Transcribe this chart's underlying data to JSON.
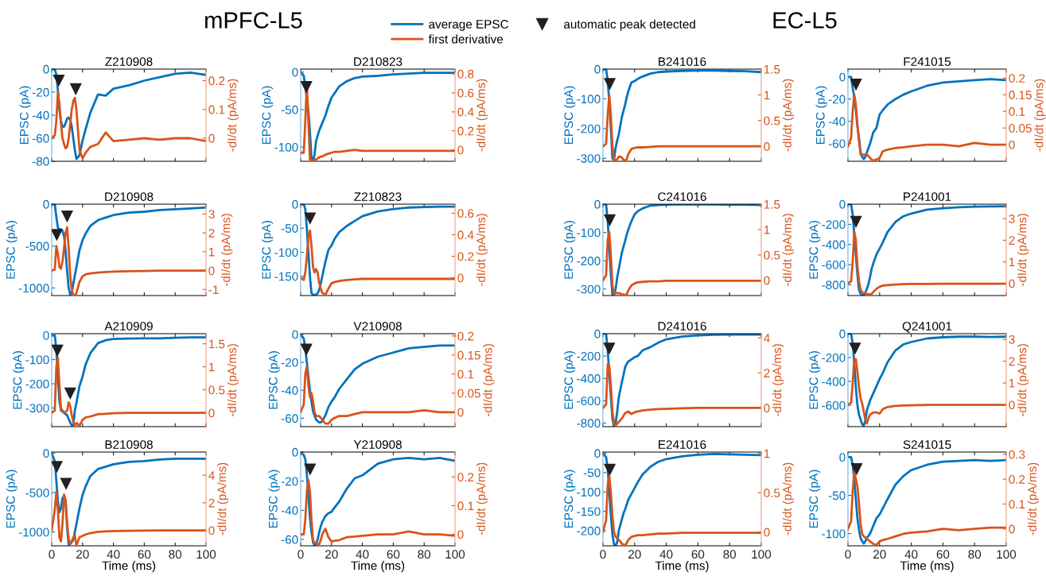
{
  "chart_data": [
    {
      "type": "line",
      "title": "Z210908",
      "ylabel": "EPSC (pA)",
      "y2label": "-dI/dt (pA/ms)",
      "annotations": [
        "mPFC-L5"
      ],
      "legend": "top",
      "tick_labels": "y",
      "xlim": [
        0,
        100
      ],
      "xticks": [
        0,
        20,
        40,
        60,
        80,
        100
      ],
      "ylim": [
        -80,
        0
      ],
      "yticks": [
        -80,
        -60,
        -40,
        -20,
        0
      ],
      "y2lim": [
        -0.08,
        0.24
      ],
      "y2ticks": [
        0,
        0.1,
        0.2
      ],
      "x": [
        0,
        2,
        3,
        4,
        5,
        6,
        7,
        8,
        9,
        10,
        11,
        12,
        13,
        14,
        15,
        16,
        18,
        20,
        22,
        25,
        30,
        35,
        40,
        50,
        60,
        70,
        80,
        90,
        100
      ],
      "series": [
        {
          "name": "average EPSC",
          "color": "#0072bd",
          "values": [
            0,
            0,
            -5,
            -18,
            -35,
            -45,
            -50,
            -50,
            -47,
            -43,
            -42,
            -44,
            -50,
            -60,
            -70,
            -78,
            -75,
            -62,
            -52,
            -38,
            -22,
            -23,
            -17,
            -14,
            -10,
            -7,
            -4,
            -3,
            -5
          ]
        },
        {
          "name": "first derivative",
          "color": "#d95319",
          "axis": "y2",
          "values": [
            0,
            0.01,
            0.06,
            0.16,
            0.12,
            0.05,
            0,
            -0.02,
            -0.035,
            -0.03,
            0,
            0.05,
            0.1,
            0.13,
            0.14,
            0.1,
            -0.04,
            -0.07,
            -0.05,
            -0.03,
            -0.02,
            0.02,
            -0.01,
            -0.005,
            0,
            -0.005,
            0,
            0,
            -0.01
          ]
        },
        {
          "name": "automatic peak detected",
          "type": "scatter",
          "marker": "triangle",
          "color": "#231f20",
          "axis": "y2",
          "x": [
            4.6,
            15.6
          ],
          "values": [
            0.2,
            0.17
          ]
        }
      ]
    },
    {
      "type": "line",
      "title": "D210823",
      "ylabel": "EPSC (pA)",
      "y2label": "-dI/dt (pA/ms)",
      "tick_labels": "y",
      "xlim": [
        0,
        100
      ],
      "xticks": [
        0,
        20,
        40,
        60,
        80,
        100
      ],
      "ylim": [
        -119,
        4
      ],
      "yticks": [
        -100,
        -50,
        0
      ],
      "y2lim": [
        -0.12,
        0.85
      ],
      "y2ticks": [
        0,
        0.2,
        0.4,
        0.6,
        0.8
      ],
      "x": [
        0,
        2,
        3,
        4,
        5,
        6,
        7,
        8,
        9,
        10,
        11,
        12,
        13,
        14,
        15,
        16,
        18,
        20,
        22,
        25,
        30,
        35,
        40,
        50,
        60,
        70,
        80,
        90,
        100
      ],
      "series": [
        {
          "color": "#0072bd",
          "values": [
            0,
            -5,
            -20,
            -35,
            -52,
            -80,
            -114,
            -118,
            -110,
            -92,
            -85,
            -78,
            -73,
            -68,
            -63,
            -58,
            -45,
            -34,
            -28,
            -19,
            -12,
            -8,
            -6,
            -5,
            -3,
            -2,
            -1,
            -1,
            -1
          ]
        },
        {
          "color": "#d95319",
          "axis": "y2",
          "values": [
            -0.03,
            -0.03,
            0.3,
            0.7,
            0.3,
            -0.1,
            -0.11,
            -0.11,
            -0.1,
            -0.1,
            -0.09,
            -0.08,
            -0.07,
            -0.07,
            -0.06,
            -0.05,
            -0.04,
            -0.03,
            -0.02,
            -0.02,
            -0.01,
            0,
            -0.01,
            -0.01,
            -0.01,
            -0.01,
            -0.01,
            -0.01,
            -0.01
          ]
        },
        {
          "type": "scatter",
          "marker": "triangle",
          "color": "#231f20",
          "axis": "y2",
          "x": [
            3.7
          ],
          "values": [
            0.66
          ]
        }
      ]
    },
    {
      "type": "line",
      "title": "B241016",
      "ylabel": "EPSC (pA)",
      "y2label": "-dI/dt (pA/ms)",
      "annotations": [
        "EC-L5"
      ],
      "tick_labels": "y",
      "xlim": [
        0,
        100
      ],
      "xticks": [
        0,
        20,
        40,
        60,
        80,
        100
      ],
      "ylim": [
        -310,
        0
      ],
      "yticks": [
        -300,
        -200,
        -100,
        0
      ],
      "y2lim": [
        -0.29,
        1.5
      ],
      "y2ticks": [
        0,
        0.5,
        1,
        1.5
      ],
      "x": [
        0,
        2,
        3,
        4,
        5,
        6,
        7,
        8,
        9,
        10,
        11,
        12,
        13,
        14,
        15,
        16,
        18,
        20,
        22,
        25,
        30,
        35,
        40,
        50,
        60,
        70,
        80,
        90,
        100
      ],
      "series": [
        {
          "color": "#0072bd",
          "values": [
            0,
            0,
            -40,
            -107,
            -200,
            -300,
            -305,
            -265,
            -240,
            -220,
            -190,
            -160,
            -140,
            -120,
            -96,
            -75,
            -45,
            -40,
            -33,
            -25,
            -15,
            -10,
            -8,
            -6,
            -5,
            -5,
            -6,
            -7,
            -10
          ]
        },
        {
          "color": "#d95319",
          "axis": "y2",
          "values": [
            0,
            0.05,
            0.6,
            1.0,
            0.6,
            0,
            -0.25,
            -0.28,
            -0.25,
            -0.2,
            -0.2,
            -0.22,
            -0.26,
            -0.28,
            -0.25,
            -0.15,
            -0.05,
            -0.03,
            -0.02,
            -0.02,
            -0.01,
            0,
            0,
            0,
            0,
            0,
            0,
            0,
            0
          ]
        },
        {
          "type": "scatter",
          "marker": "triangle",
          "color": "#231f20",
          "axis": "y2",
          "x": [
            4.3
          ],
          "values": [
            1.21
          ]
        }
      ]
    },
    {
      "type": "line",
      "title": "F241015",
      "ylabel": "EPSC (pA)",
      "y2label": "-dI/dt (pA/ms)",
      "tick_labels": "y",
      "xlim": [
        0,
        100
      ],
      "xticks": [
        0,
        20,
        40,
        60,
        80,
        100
      ],
      "ylim": [
        -76,
        7
      ],
      "yticks": [
        -60,
        -40,
        -20,
        0
      ],
      "y2lim": [
        -0.05,
        0.227
      ],
      "y2ticks": [
        0,
        0.05,
        0.1,
        0.15,
        0.2
      ],
      "x": [
        0,
        2,
        3,
        4,
        5,
        6,
        7,
        8,
        9,
        10,
        11,
        12,
        13,
        14,
        15,
        16,
        18,
        20,
        22,
        25,
        30,
        35,
        40,
        50,
        60,
        70,
        80,
        90,
        100
      ],
      "series": [
        {
          "color": "#0072bd",
          "values": [
            0,
            0,
            -10,
            -18,
            -30,
            -45,
            -55,
            -68,
            -72,
            -74,
            -72,
            -68,
            -64,
            -60,
            -55,
            -50,
            -46,
            -34,
            -30,
            -25,
            -20,
            -16,
            -13,
            -8,
            -5,
            -4,
            -3,
            -2,
            -3
          ]
        },
        {
          "color": "#d95319",
          "axis": "y2",
          "values": [
            -0.005,
            0.02,
            0.1,
            0.15,
            0.12,
            0.06,
            0.01,
            -0.03,
            -0.03,
            -0.03,
            -0.03,
            -0.03,
            -0.035,
            -0.04,
            -0.045,
            -0.048,
            -0.045,
            -0.04,
            -0.02,
            -0.015,
            -0.01,
            -0.008,
            -0.005,
            0,
            0,
            -0.005,
            0.005,
            0,
            0
          ]
        },
        {
          "type": "scatter",
          "marker": "triangle",
          "color": "#231f20",
          "axis": "y2",
          "x": [
            5.1
          ],
          "values": [
            0.18
          ]
        }
      ]
    },
    {
      "type": "line",
      "title": "D210908",
      "ylabel": "EPSC (pA)",
      "y2label": "-dI/dt (pA/ms)",
      "tick_labels": "y",
      "xlim": [
        0,
        100
      ],
      "xticks": [
        0,
        20,
        40,
        60,
        80,
        100
      ],
      "ylim": [
        -1090,
        0
      ],
      "yticks": [
        -1000,
        -500,
        0
      ],
      "y2lim": [
        -1.32,
        3.52
      ],
      "y2ticks": [
        -1,
        0,
        1,
        2,
        3
      ],
      "x": [
        0,
        2,
        3,
        4,
        5,
        6,
        7,
        8,
        9,
        10,
        11,
        12,
        13,
        14,
        15,
        16,
        18,
        20,
        22,
        25,
        30,
        35,
        40,
        50,
        60,
        70,
        80,
        90,
        100
      ],
      "series": [
        {
          "color": "#0072bd",
          "values": [
            0,
            0,
            -150,
            -280,
            -300,
            -300,
            -320,
            -380,
            -550,
            -800,
            -1000,
            -1080,
            -1050,
            -950,
            -850,
            -750,
            -550,
            -430,
            -350,
            -260,
            -190,
            -160,
            -130,
            -100,
            -90,
            -70,
            -60,
            -50,
            -40
          ]
        },
        {
          "color": "#d95319",
          "axis": "y2",
          "values": [
            0,
            0.05,
            1.3,
            0.9,
            0.2,
            0.1,
            0.5,
            1.2,
            2.0,
            2.3,
            1.2,
            -0.3,
            -1.0,
            -1.3,
            -1.3,
            -1.2,
            -0.6,
            -0.3,
            -0.2,
            -0.15,
            -0.1,
            -0.07,
            -0.05,
            -0.03,
            -0.02,
            0,
            0,
            0,
            0
          ]
        },
        {
          "type": "scatter",
          "marker": "triangle",
          "color": "#231f20",
          "axis": "y2",
          "x": [
            3.3,
            10
          ],
          "values": [
            1.88,
            2.86
          ]
        }
      ]
    },
    {
      "type": "line",
      "title": "Z210823",
      "ylabel": "EPSC (pA)",
      "y2label": "-dI/dt (pA/ms)",
      "tick_labels": "y",
      "xlim": [
        0,
        100
      ],
      "xticks": [
        0,
        20,
        40,
        60,
        80,
        100
      ],
      "ylim": [
        -190,
        0
      ],
      "yticks": [
        -150,
        -100,
        -50,
        0
      ],
      "y2lim": [
        -0.165,
        0.684
      ],
      "y2ticks": [
        0,
        0.2,
        0.4,
        0.6
      ],
      "x": [
        0,
        2,
        3,
        4,
        5,
        6,
        7,
        8,
        9,
        10,
        11,
        12,
        13,
        14,
        15,
        16,
        18,
        20,
        22,
        25,
        30,
        35,
        40,
        50,
        60,
        70,
        80,
        90,
        100
      ],
      "series": [
        {
          "color": "#0072bd",
          "values": [
            0,
            0,
            -10,
            -50,
            -100,
            -150,
            -185,
            -188,
            -189,
            -188,
            -185,
            -178,
            -165,
            -150,
            -135,
            -120,
            -95,
            -86,
            -72,
            -58,
            -45,
            -35,
            -25,
            -15,
            -10,
            -7,
            -6,
            -5,
            -5
          ]
        },
        {
          "color": "#d95319",
          "axis": "y2",
          "values": [
            0,
            -0.02,
            0.05,
            0.2,
            0.38,
            0.44,
            0.3,
            0.1,
            0.05,
            0.08,
            0.05,
            -0.05,
            -0.1,
            -0.14,
            -0.15,
            -0.16,
            -0.1,
            -0.05,
            -0.04,
            -0.03,
            -0.02,
            -0.015,
            -0.01,
            -0.01,
            -0.01,
            -0.01,
            -0.01,
            -0.01,
            -0.01
          ]
        },
        {
          "type": "scatter",
          "marker": "triangle",
          "color": "#231f20",
          "axis": "y2",
          "x": [
            6.1
          ],
          "values": [
            0.55
          ]
        }
      ]
    },
    {
      "type": "line",
      "title": "C241016",
      "ylabel": "EPSC (pA)",
      "y2label": "-dI/dt (pA/ms)",
      "tick_labels": "y",
      "xlim": [
        0,
        100
      ],
      "xticks": [
        0,
        20,
        40,
        60,
        80,
        100
      ],
      "ylim": [
        -323,
        0
      ],
      "yticks": [
        -300,
        -200,
        -100,
        0
      ],
      "y2lim": [
        -0.3,
        1.5
      ],
      "y2ticks": [
        0,
        0.5,
        1,
        1.5
      ],
      "x": [
        0,
        2,
        3,
        4,
        5,
        6,
        7,
        8,
        9,
        10,
        11,
        12,
        13,
        14,
        15,
        16,
        18,
        20,
        22,
        25,
        30,
        35,
        40,
        50,
        60,
        70,
        80,
        90,
        100
      ],
      "series": [
        {
          "color": "#0072bd",
          "values": [
            0,
            0,
            -60,
            -150,
            -250,
            -320,
            -320,
            -300,
            -260,
            -230,
            -200,
            -170,
            -150,
            -130,
            -108,
            -90,
            -60,
            -36,
            -25,
            -15,
            -5,
            -3,
            -2,
            0,
            -1,
            -1,
            -2,
            -2,
            -3
          ]
        },
        {
          "color": "#d95319",
          "axis": "y2",
          "values": [
            0,
            0.1,
            0.8,
            0.95,
            0.5,
            -0.1,
            -0.27,
            -0.25,
            -0.25,
            -0.25,
            -0.26,
            -0.28,
            -0.28,
            -0.29,
            -0.28,
            -0.2,
            -0.1,
            -0.06,
            -0.04,
            -0.03,
            -0.02,
            -0.02,
            -0.01,
            -0.01,
            -0.01,
            -0.01,
            -0.01,
            -0.01,
            -0.01
          ]
        },
        {
          "type": "scatter",
          "marker": "triangle",
          "color": "#231f20",
          "axis": "y2",
          "x": [
            4.3
          ],
          "values": [
            1.18
          ]
        }
      ]
    },
    {
      "type": "line",
      "title": "P241001",
      "ylabel": "EPSC (pA)",
      "y2label": "-dI/dt (pA/ms)",
      "tick_labels": "y",
      "xlim": [
        0,
        100
      ],
      "xticks": [
        0,
        20,
        40,
        60,
        80,
        100
      ],
      "ylim": [
        -907,
        0
      ],
      "yticks": [
        -800,
        -600,
        -400,
        -200,
        0
      ],
      "y2lim": [
        -0.56,
        3.67
      ],
      "y2ticks": [
        0,
        1,
        2,
        3
      ],
      "x": [
        0,
        2,
        3,
        4,
        5,
        6,
        7,
        8,
        9,
        10,
        11,
        12,
        13,
        14,
        15,
        16,
        18,
        20,
        22,
        25,
        30,
        35,
        40,
        50,
        60,
        70,
        80,
        90,
        100
      ],
      "series": [
        {
          "color": "#0072bd",
          "values": [
            0,
            0,
            -100,
            -300,
            -500,
            -700,
            -850,
            -890,
            -900,
            -905,
            -880,
            -840,
            -790,
            -720,
            -640,
            -590,
            -500,
            -440,
            -380,
            -277,
            -177,
            -120,
            -93,
            -55,
            -40,
            -30,
            -25,
            -22,
            -20
          ]
        },
        {
          "color": "#d95319",
          "axis": "y2",
          "values": [
            0,
            0.1,
            1.0,
            2.4,
            2.0,
            0.8,
            0.1,
            -0.3,
            -0.4,
            -0.45,
            -0.48,
            -0.5,
            -0.5,
            -0.5,
            -0.48,
            -0.4,
            -0.25,
            -0.15,
            -0.1,
            -0.08,
            -0.05,
            -0.03,
            -0.02,
            -0.02,
            -0.01,
            -0.01,
            -0.01,
            -0.01,
            -0.01
          ]
        },
        {
          "type": "scatter",
          "marker": "triangle",
          "color": "#231f20",
          "axis": "y2",
          "x": [
            5.1
          ],
          "values": [
            2.85
          ]
        }
      ]
    },
    {
      "type": "line",
      "title": "A210909",
      "ylabel": "EPSC (pA)",
      "y2label": "-dI/dt (pA/ms)",
      "tick_labels": "y",
      "xlim": [
        0,
        100
      ],
      "xticks": [
        0,
        20,
        40,
        60,
        80,
        100
      ],
      "ylim": [
        -377,
        7
      ],
      "yticks": [
        -300,
        -200,
        -100,
        0
      ],
      "y2lim": [
        -0.3,
        1.72
      ],
      "y2ticks": [
        0,
        0.5,
        1,
        1.5
      ],
      "x": [
        0,
        2,
        3,
        4,
        5,
        6,
        7,
        8,
        9,
        10,
        11,
        12,
        13,
        14,
        15,
        16,
        18,
        20,
        22,
        25,
        30,
        35,
        40,
        50,
        60,
        70,
        80,
        90,
        100
      ],
      "series": [
        {
          "color": "#0072bd",
          "values": [
            0,
            0,
            -60,
            -180,
            -270,
            -310,
            -315,
            -320,
            -325,
            -330,
            -345,
            -360,
            -372,
            -370,
            -310,
            -280,
            -210,
            -170,
            -120,
            -74,
            -32,
            -20,
            -15,
            -13,
            -12,
            -12,
            -10,
            -8,
            -8
          ]
        },
        {
          "color": "#d95319",
          "axis": "y2",
          "values": [
            0,
            0.05,
            1.0,
            1.2,
            0.6,
            0.1,
            0.05,
            0,
            0.02,
            0.05,
            0.23,
            0.15,
            -0.05,
            -0.2,
            -0.28,
            -0.22,
            -0.28,
            -0.15,
            -0.1,
            -0.08,
            -0.03,
            -0.02,
            -0.01,
            0,
            0,
            0,
            0,
            0,
            0
          ]
        },
        {
          "type": "scatter",
          "marker": "triangle",
          "color": "#231f20",
          "axis": "y2",
          "x": [
            3.7,
            12
          ],
          "values": [
            1.35,
            0.42
          ]
        }
      ]
    },
    {
      "type": "line",
      "title": "V210908",
      "ylabel": "EPSC (pA)",
      "y2label": "-dI/dt (pA/ms)",
      "tick_labels": "y",
      "xlim": [
        0,
        100
      ],
      "xticks": [
        0,
        20,
        40,
        60,
        80,
        100
      ],
      "ylim": [
        -66,
        0.5
      ],
      "yticks": [
        -60,
        -40,
        -20,
        0
      ],
      "y2lim": [
        -0.038,
        0.206
      ],
      "y2ticks": [
        0,
        0.05,
        0.1,
        0.15,
        0.2
      ],
      "x": [
        0,
        2,
        3,
        4,
        5,
        6,
        7,
        8,
        9,
        10,
        11,
        12,
        13,
        14,
        15,
        16,
        18,
        20,
        22,
        25,
        30,
        35,
        40,
        50,
        60,
        70,
        80,
        90,
        100
      ],
      "series": [
        {
          "color": "#0072bd",
          "values": [
            0,
            -3,
            -10,
            -20,
            -30,
            -40,
            -48,
            -55,
            -58,
            -61,
            -62,
            -63,
            -63,
            -62,
            -60,
            -58,
            -52,
            -48,
            -45,
            -39,
            -32,
            -25,
            -21,
            -16,
            -13,
            -10,
            -9,
            -8,
            -8
          ]
        },
        {
          "color": "#d95319",
          "axis": "y2",
          "values": [
            0,
            0.02,
            0.1,
            0.12,
            0.07,
            0.04,
            0.05,
            0.03,
            0,
            -0.01,
            -0.01,
            -0.01,
            -0.015,
            -0.02,
            -0.025,
            -0.03,
            -0.03,
            -0.02,
            -0.015,
            -0.01,
            -0.01,
            -0.005,
            0,
            0,
            0,
            0,
            0.005,
            0,
            0
          ]
        },
        {
          "type": "scatter",
          "marker": "triangle",
          "color": "#231f20",
          "axis": "y2",
          "x": [
            3.7
          ],
          "values": [
            0.164
          ]
        }
      ]
    },
    {
      "type": "line",
      "title": "D241016",
      "ylabel": "EPSC (pA)",
      "y2label": "-dI/dt (pA/ms)",
      "tick_labels": "y",
      "xlim": [
        0,
        100
      ],
      "xticks": [
        0,
        20,
        40,
        60,
        80,
        100
      ],
      "ylim": [
        -832,
        0
      ],
      "yticks": [
        -800,
        -600,
        -400,
        -200,
        0
      ],
      "y2lim": [
        -1.07,
        4.24
      ],
      "y2ticks": [
        0,
        2,
        4
      ],
      "x": [
        0,
        2,
        3,
        4,
        5,
        6,
        7,
        8,
        9,
        10,
        11,
        12,
        13,
        14,
        15,
        16,
        18,
        20,
        22,
        25,
        30,
        35,
        40,
        50,
        60,
        70,
        80,
        90,
        100
      ],
      "series": [
        {
          "color": "#0072bd",
          "values": [
            0,
            0,
            -150,
            -350,
            -560,
            -760,
            -830,
            -800,
            -700,
            -570,
            -500,
            -430,
            -370,
            -300,
            -270,
            -250,
            -230,
            -210,
            -200,
            -150,
            -120,
            -80,
            -50,
            -25,
            -15,
            -10,
            -8,
            -8,
            -8
          ]
        },
        {
          "color": "#d95319",
          "axis": "y2",
          "values": [
            0,
            0.2,
            2.5,
            2.4,
            1.3,
            -0.2,
            -0.9,
            -1.0,
            -0.9,
            -0.8,
            -0.7,
            -0.6,
            -0.45,
            -0.3,
            -0.25,
            -0.2,
            -0.35,
            -0.25,
            -0.2,
            -0.15,
            -0.1,
            -0.07,
            -0.05,
            -0.02,
            0,
            0,
            0,
            0,
            0
          ]
        },
        {
          "type": "scatter",
          "marker": "triangle",
          "color": "#231f20",
          "axis": "y2",
          "x": [
            4
          ],
          "values": [
            3.38
          ]
        }
      ]
    },
    {
      "type": "line",
      "title": "Q241001",
      "ylabel": "EPSC (pA)",
      "y2label": "-dI/dt (pA/ms)",
      "tick_labels": "y",
      "xlim": [
        0,
        100
      ],
      "xticks": [
        0,
        20,
        40,
        60,
        80,
        100
      ],
      "ylim": [
        -779,
        0
      ],
      "yticks": [
        -600,
        -400,
        -200,
        0
      ],
      "y2lim": [
        -1.0,
        3.26
      ],
      "y2ticks": [
        0,
        1,
        2,
        3
      ],
      "x": [
        0,
        2,
        3,
        4,
        5,
        6,
        7,
        8,
        9,
        10,
        11,
        12,
        13,
        14,
        15,
        16,
        18,
        20,
        22,
        25,
        30,
        35,
        40,
        50,
        60,
        70,
        80,
        90,
        100
      ],
      "series": [
        {
          "color": "#0072bd",
          "values": [
            0,
            0,
            -80,
            -250,
            -450,
            -600,
            -680,
            -720,
            -760,
            -770,
            -730,
            -640,
            -600,
            -560,
            -530,
            -500,
            -440,
            -380,
            -330,
            -240,
            -140,
            -90,
            -70,
            -40,
            -30,
            -25,
            -25,
            -28,
            -25
          ]
        },
        {
          "color": "#d95319",
          "axis": "y2",
          "values": [
            0,
            0.1,
            1.0,
            2.1,
            2.1,
            1.5,
            0.8,
            0.3,
            0.05,
            -0.3,
            -0.7,
            -0.85,
            -0.6,
            -0.45,
            -0.4,
            -0.35,
            -0.35,
            -0.4,
            -0.2,
            -0.1,
            -0.05,
            -0.03,
            -0.02,
            0,
            0,
            0,
            0,
            0,
            0
          ]
        },
        {
          "type": "scatter",
          "marker": "triangle",
          "color": "#231f20",
          "axis": "y2",
          "x": [
            4.5
          ],
          "values": [
            2.57
          ]
        }
      ]
    },
    {
      "type": "line",
      "title": "B210908",
      "ylabel": "EPSC (pA)",
      "y2label": "-dI/dt (pA/ms)",
      "xlabel": "Time (ms)",
      "xlim": [
        0,
        100
      ],
      "xticks": [
        0,
        20,
        40,
        60,
        80,
        100
      ],
      "ylim": [
        -1175,
        15
      ],
      "yticks": [
        -1000,
        -500,
        0
      ],
      "y2lim": [
        -1.12,
        5.68
      ],
      "y2ticks": [
        0,
        2,
        4
      ],
      "x": [
        0,
        2,
        3,
        4,
        5,
        6,
        7,
        8,
        9,
        10,
        11,
        12,
        13,
        14,
        15,
        16,
        18,
        20,
        22,
        25,
        30,
        35,
        40,
        50,
        60,
        70,
        80,
        90,
        100
      ],
      "series": [
        {
          "color": "#0072bd",
          "values": [
            0,
            -100,
            -350,
            -600,
            -750,
            -700,
            -570,
            -540,
            -600,
            -950,
            -1160,
            -1150,
            -1130,
            -1100,
            -1000,
            -900,
            -700,
            -530,
            -420,
            -290,
            -200,
            -170,
            -140,
            -110,
            -100,
            -80,
            -70,
            -70,
            -70
          ]
        },
        {
          "color": "#d95319",
          "axis": "y2",
          "values": [
            0,
            1.5,
            2.8,
            1.5,
            -0.5,
            -0.8,
            0.5,
            2.6,
            2.2,
            0.5,
            -0.6,
            -1.0,
            -0.8,
            -0.5,
            -0.35,
            -1.1,
            -0.5,
            -0.4,
            -0.3,
            -0.2,
            -0.1,
            -0.07,
            -0.05,
            -0.03,
            -0.02,
            0,
            0,
            0,
            0
          ]
        },
        {
          "type": "scatter",
          "marker": "triangle",
          "color": "#231f20",
          "axis": "y2",
          "x": [
            3.3,
            9.3
          ],
          "values": [
            4.6,
            3.37
          ]
        }
      ]
    },
    {
      "type": "line",
      "title": "Y210908",
      "ylabel": "EPSC (pA)",
      "y2label": "-dI/dt (pA/ms)",
      "xlabel": "Time (ms)",
      "xlim": [
        0,
        100
      ],
      "xticks": [
        0,
        20,
        40,
        60,
        80,
        100
      ],
      "ylim": [
        -64.4,
        0
      ],
      "yticks": [
        -60,
        -40,
        -20,
        0
      ],
      "y2lim": [
        -0.04,
        0.287
      ],
      "y2ticks": [
        0,
        0.1,
        0.2
      ],
      "x": [
        0,
        2,
        3,
        4,
        5,
        6,
        7,
        8,
        9,
        10,
        11,
        12,
        13,
        14,
        15,
        16,
        18,
        20,
        22,
        25,
        30,
        35,
        40,
        50,
        60,
        70,
        80,
        90,
        100
      ],
      "series": [
        {
          "color": "#0072bd",
          "values": [
            -0.5,
            -2,
            -5,
            -15,
            -30,
            -45,
            -55,
            -62,
            -64,
            -63,
            -60,
            -55,
            -51,
            -48,
            -46,
            -44,
            -42,
            -41,
            -38,
            -34,
            -25,
            -18,
            -16,
            -8,
            -5,
            -4,
            -5,
            -4,
            -6
          ]
        },
        {
          "color": "#d95319",
          "axis": "y2",
          "values": [
            0,
            0,
            0.05,
            0.15,
            0.19,
            0.15,
            0.05,
            -0.02,
            -0.03,
            -0.03,
            -0.035,
            -0.035,
            -0.02,
            0,
            0.01,
            0.02,
            -0.01,
            -0.025,
            -0.022,
            -0.02,
            -0.01,
            -0.008,
            -0.005,
            0,
            0,
            0.01,
            0,
            0,
            -0.005
          ]
        },
        {
          "type": "scatter",
          "marker": "triangle",
          "color": "#231f20",
          "axis": "y2",
          "x": [
            6.1
          ],
          "values": [
            0.226
          ]
        }
      ]
    },
    {
      "type": "line",
      "title": "E241016",
      "ylabel": "EPSC (pA)",
      "y2label": "-dI/dt (pA/ms)",
      "xlabel": "Time (ms)",
      "xlim": [
        0,
        100
      ],
      "xticks": [
        0,
        20,
        40,
        60,
        80,
        100
      ],
      "ylim": [
        -239,
        3
      ],
      "yticks": [
        -200,
        -150,
        -100,
        -50,
        0
      ],
      "y2lim": [
        -0.175,
        1.017
      ],
      "y2ticks": [
        0,
        0.5,
        1
      ],
      "x": [
        0,
        2,
        3,
        4,
        5,
        6,
        7,
        8,
        9,
        10,
        11,
        12,
        13,
        14,
        15,
        16,
        18,
        20,
        22,
        25,
        30,
        35,
        40,
        50,
        60,
        70,
        80,
        90,
        100
      ],
      "series": [
        {
          "color": "#0072bd",
          "values": [
            0,
            -10,
            -40,
            -100,
            -160,
            -210,
            -235,
            -238,
            -230,
            -200,
            -185,
            -170,
            -155,
            -145,
            -133,
            -120,
            -105,
            -90,
            -75,
            -55,
            -35,
            -22,
            -15,
            -8,
            -4,
            -2,
            -3,
            -4,
            -5
          ]
        },
        {
          "color": "#d95319",
          "axis": "y2",
          "values": [
            0,
            0.15,
            0.6,
            0.71,
            0.5,
            0.2,
            0,
            -0.06,
            -0.08,
            -0.1,
            -0.12,
            -0.15,
            -0.16,
            -0.17,
            -0.14,
            -0.1,
            -0.06,
            -0.05,
            -0.04,
            -0.04,
            -0.03,
            -0.02,
            -0.02,
            -0.01,
            -0.01,
            -0.01,
            -0.01,
            -0.01,
            -0.01
          ]
        },
        {
          "type": "scatter",
          "marker": "triangle",
          "color": "#231f20",
          "axis": "y2",
          "x": [
            4.3
          ],
          "values": [
            0.79
          ]
        }
      ]
    },
    {
      "type": "line",
      "title": "S241015",
      "ylabel": "EPSC (pA)",
      "y2label": "-dI/dt (pA/ms)",
      "xlabel": "Time (ms)",
      "xlim": [
        0,
        100
      ],
      "xticks": [
        0,
        20,
        40,
        60,
        80,
        100
      ],
      "ylim": [
        -116,
        6.6
      ],
      "yticks": [
        -100,
        -50,
        0
      ],
      "y2lim": [
        -0.068,
        0.309
      ],
      "y2ticks": [
        0,
        0.1,
        0.2,
        0.3
      ],
      "x": [
        0,
        2,
        3,
        4,
        5,
        6,
        7,
        8,
        9,
        10,
        11,
        12,
        13,
        14,
        15,
        16,
        18,
        20,
        22,
        25,
        30,
        35,
        40,
        50,
        60,
        70,
        80,
        90,
        100
      ],
      "series": [
        {
          "color": "#0072bd",
          "values": [
            0,
            0,
            -10,
            -30,
            -55,
            -80,
            -95,
            -106,
            -110,
            -113,
            -110,
            -105,
            -103,
            -100,
            -95,
            -90,
            -80,
            -75,
            -67,
            -55,
            -36,
            -25,
            -17,
            -10,
            -6,
            -5,
            -4,
            -5,
            -4
          ]
        },
        {
          "color": "#d95319",
          "axis": "y2",
          "values": [
            0,
            0.03,
            0.15,
            0.23,
            0.2,
            0.17,
            0.1,
            0.02,
            -0.02,
            -0.03,
            -0.035,
            -0.04,
            -0.045,
            -0.05,
            -0.055,
            -0.06,
            -0.065,
            -0.05,
            -0.045,
            -0.04,
            -0.03,
            -0.02,
            -0.015,
            -0.01,
            0,
            -0.005,
            0,
            0.005,
            0.005
          ]
        },
        {
          "type": "scatter",
          "marker": "triangle",
          "color": "#231f20",
          "axis": "y2",
          "x": [
            5.5
          ],
          "values": [
            0.24
          ]
        }
      ]
    }
  ]
}
